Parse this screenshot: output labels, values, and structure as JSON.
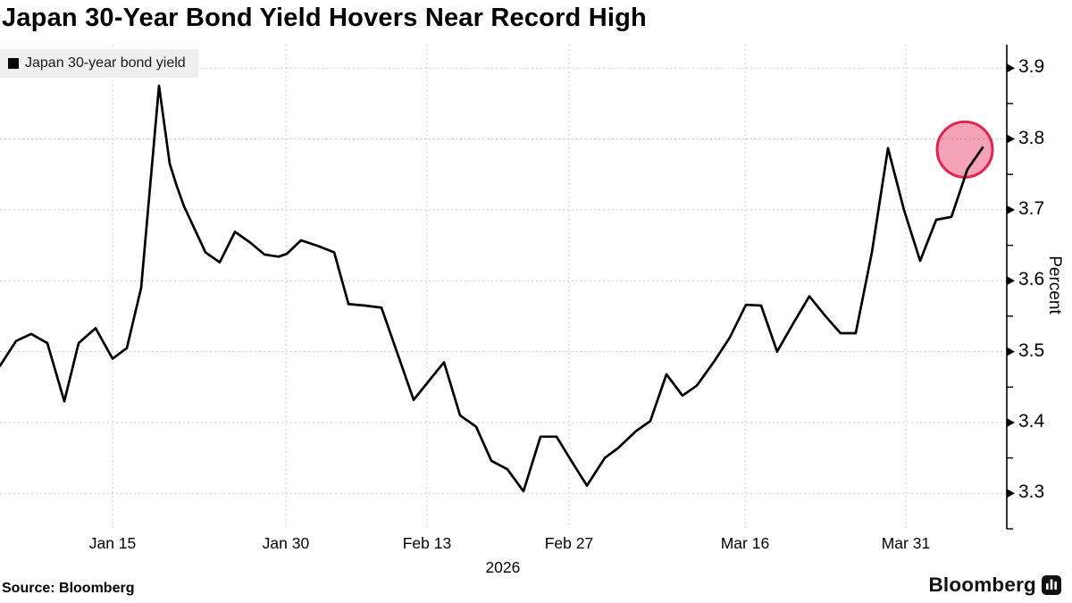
{
  "header": {
    "title": "Japan 30-Year Bond Yield Hovers Near Record High"
  },
  "legend": {
    "label": "Japan 30-year bond yield",
    "swatch_color": "#000000"
  },
  "footer": {
    "source": "Source: Bloomberg",
    "brand": "Bloomberg"
  },
  "chart_data": {
    "type": "line",
    "title": "Japan 30-Year Bond Yield Hovers Near Record High",
    "series_name": "Japan 30-year bond yield",
    "ylabel": "Percent",
    "ylim": [
      3.25,
      3.933
    ],
    "grid": true,
    "legend_position": "top-left",
    "y_ticks": [
      3.9,
      3.8,
      3.7,
      3.6,
      3.5,
      3.4,
      3.3
    ],
    "y_tick_labels": [
      "3.9",
      "3.8",
      "3.7",
      "3.6",
      "3.5",
      "3.4",
      "3.3"
    ],
    "y_minor_ticks": [
      3.85,
      3.75,
      3.65,
      3.55,
      3.45,
      3.35,
      3.25
    ],
    "x_ticks": [
      {
        "label": "Jan 15",
        "x": 0.1118
      },
      {
        "label": "Jan 30",
        "x": 0.2839
      },
      {
        "label": "Feb 13",
        "x": 0.4241
      },
      {
        "label": "Feb 27",
        "x": 0.5652
      },
      {
        "label": "Mar 16",
        "x": 0.74
      },
      {
        "label": "Mar 31",
        "x": 0.8997
      }
    ],
    "year_label": {
      "text": "2026",
      "x": 0.4995
    },
    "points": [
      [
        0.0,
        3.48
      ],
      [
        0.016,
        3.515
      ],
      [
        0.031,
        3.525
      ],
      [
        0.047,
        3.512
      ],
      [
        0.0639,
        3.43
      ],
      [
        0.0781,
        3.512
      ],
      [
        0.0949,
        3.533
      ],
      [
        0.1118,
        3.49
      ],
      [
        0.126,
        3.505
      ],
      [
        0.1402,
        3.59
      ],
      [
        0.1579,
        3.875
      ],
      [
        0.1686,
        3.765
      ],
      [
        0.1757,
        3.733
      ],
      [
        0.1828,
        3.705
      ],
      [
        0.2041,
        3.64
      ],
      [
        0.2183,
        3.626
      ],
      [
        0.2334,
        3.669
      ],
      [
        0.2484,
        3.654
      ],
      [
        0.2626,
        3.637
      ],
      [
        0.2768,
        3.634
      ],
      [
        0.2848,
        3.638
      ],
      [
        0.299,
        3.657
      ],
      [
        0.3159,
        3.649
      ],
      [
        0.3319,
        3.64
      ],
      [
        0.3461,
        3.567
      ],
      [
        0.362,
        3.565
      ],
      [
        0.3789,
        3.562
      ],
      [
        0.4108,
        3.432
      ],
      [
        0.441,
        3.485
      ],
      [
        0.457,
        3.41
      ],
      [
        0.4729,
        3.394
      ],
      [
        0.488,
        3.346
      ],
      [
        0.504,
        3.334
      ],
      [
        0.52,
        3.303
      ],
      [
        0.5368,
        3.38
      ],
      [
        0.5528,
        3.38
      ],
      [
        0.5679,
        3.345
      ],
      [
        0.583,
        3.311
      ],
      [
        0.6007,
        3.35
      ],
      [
        0.614,
        3.364
      ],
      [
        0.6318,
        3.388
      ],
      [
        0.6459,
        3.402
      ],
      [
        0.6619,
        3.468
      ],
      [
        0.6779,
        3.438
      ],
      [
        0.6921,
        3.452
      ],
      [
        0.7098,
        3.487
      ],
      [
        0.7249,
        3.52
      ],
      [
        0.7409,
        3.566
      ],
      [
        0.756,
        3.565
      ],
      [
        0.7719,
        3.5
      ],
      [
        0.7879,
        3.54
      ],
      [
        0.8039,
        3.578
      ],
      [
        0.8199,
        3.55
      ],
      [
        0.8349,
        3.526
      ],
      [
        0.85,
        3.526
      ],
      [
        0.866,
        3.64
      ],
      [
        0.882,
        3.787
      ],
      [
        0.8979,
        3.7
      ],
      [
        0.9139,
        3.628
      ],
      [
        0.9299,
        3.686
      ],
      [
        0.945,
        3.69
      ],
      [
        0.9609,
        3.757
      ],
      [
        0.976,
        3.788
      ]
    ],
    "highlight_circle": {
      "x": 0.9583,
      "value": 3.785,
      "radius_px": 31
    },
    "colors": {
      "line": "#000000",
      "highlight": "#E2244E",
      "grid": "#C9C9C9",
      "legend_bg": "#EFEFEF"
    }
  }
}
